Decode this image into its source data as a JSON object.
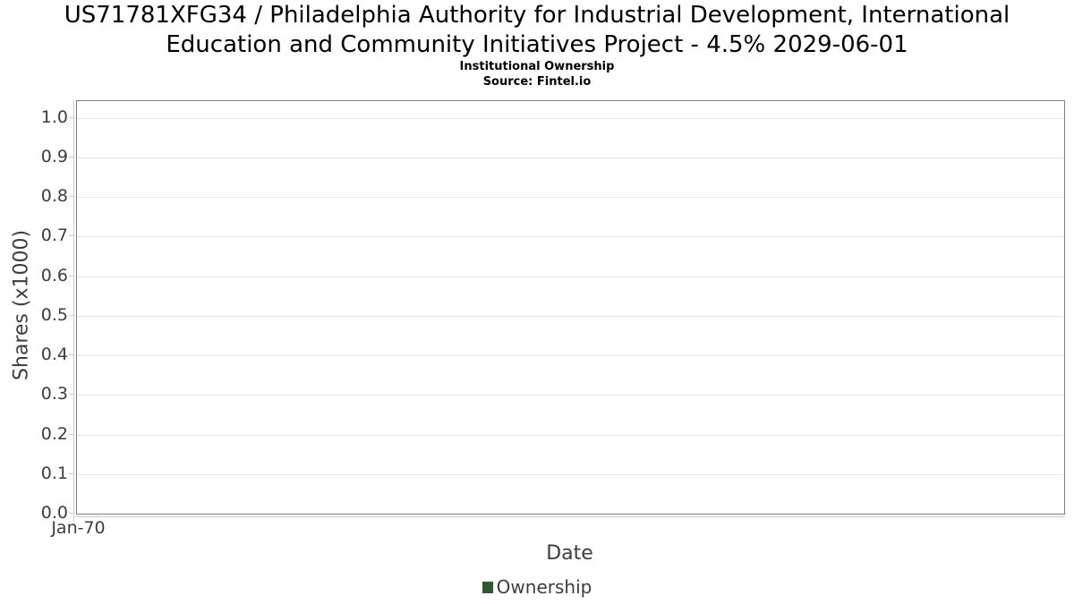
{
  "header": {
    "title_lines": [
      "US71781XFG34 / Philadelphia Authority for Industrial Development, International",
      "Education and Community Initiatives Project - 4.5% 2029-06-01"
    ],
    "subtitle": "Institutional Ownership",
    "source": "Source: Fintel.io"
  },
  "chart_data": {
    "type": "line",
    "title": "US71781XFG34 / Philadelphia Authority for Industrial Development, International Education and Community Initiatives Project - 4.5% 2029-06-01",
    "subtitle": "Institutional Ownership",
    "source": "Source: Fintel.io",
    "xlabel": "Date",
    "ylabel": "Shares (x1000)",
    "x_tick_labels": [
      "Jan-70"
    ],
    "y_tick_labels": [
      "0.0",
      "0.1",
      "0.2",
      "0.3",
      "0.4",
      "0.5",
      "0.6",
      "0.7",
      "0.8",
      "0.9",
      "1.0"
    ],
    "y_tick_values": [
      0.0,
      0.1,
      0.2,
      0.3,
      0.4,
      0.5,
      0.6,
      0.7,
      0.8,
      0.9,
      1.0
    ],
    "ylim": [
      0,
      1.042
    ],
    "grid": true,
    "legend_position": "bottom",
    "series": [
      {
        "name": "Ownership",
        "color": "#2d5a31",
        "x": [],
        "values": []
      }
    ],
    "colors": {
      "grid": "#e7e7e7",
      "plot_border": "#7f7f7f",
      "axis_line": "#cccccc",
      "text": "#3d3d3d",
      "title": "#000000"
    }
  }
}
